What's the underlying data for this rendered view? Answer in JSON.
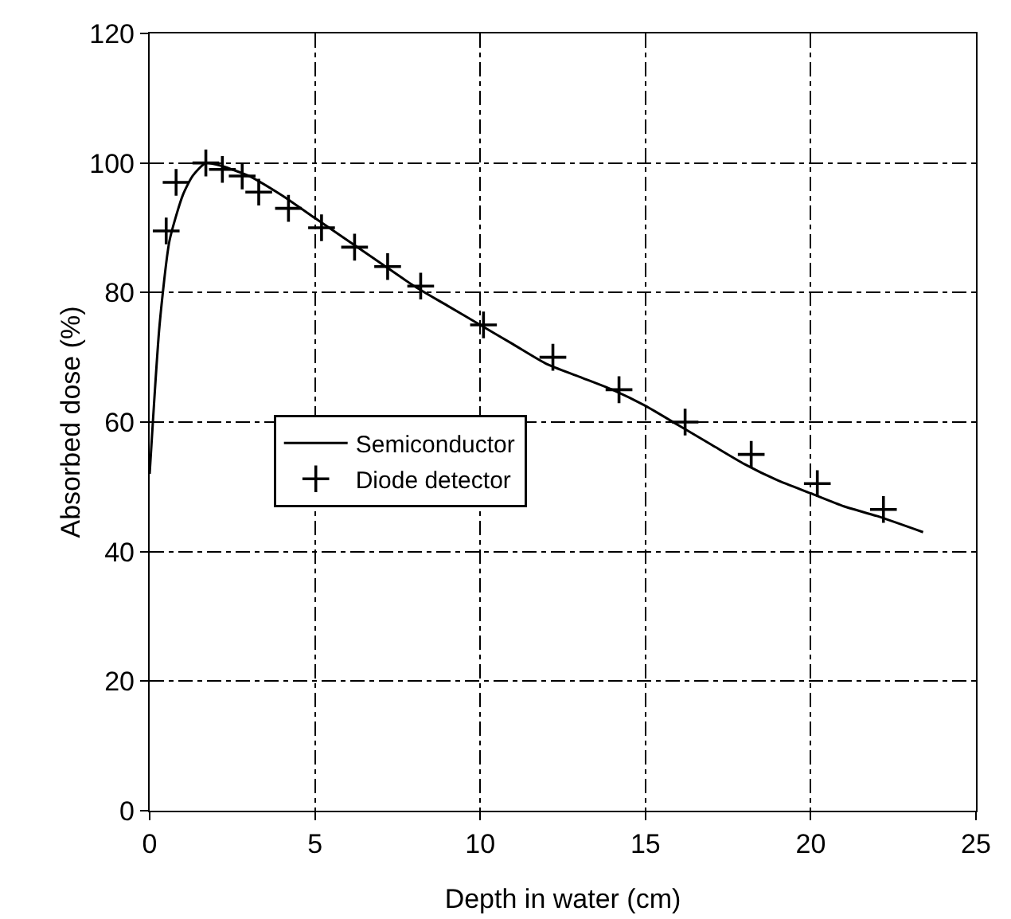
{
  "chart_data": {
    "type": "line",
    "xlabel": "Depth in water (cm)",
    "ylabel": "Absorbed dose (%)",
    "xlim": [
      0,
      25
    ],
    "xticks": [
      0,
      5,
      10,
      15,
      20,
      25
    ],
    "ylim": [
      0,
      120
    ],
    "yticks": [
      0,
      20,
      40,
      60,
      80,
      100,
      120
    ],
    "grid": true,
    "legend": "left",
    "series": [
      {
        "name": "Semiconductor",
        "type": "line",
        "color": "#000000",
        "marker": "none",
        "line_style": "solid",
        "x": [
          0,
          0.3,
          0.6,
          1,
          1.3,
          1.7,
          2.2,
          3,
          4,
          5,
          6,
          7,
          8,
          9,
          10,
          11,
          12,
          13,
          14,
          15,
          16,
          17,
          18,
          19,
          20,
          21,
          22,
          23.4
        ],
        "values": [
          52,
          75,
          88,
          95,
          98,
          100,
          99.5,
          98,
          95,
          91.5,
          88,
          84.5,
          81,
          78,
          75,
          72,
          69,
          67,
          65,
          62.5,
          59.5,
          56.5,
          53.5,
          51,
          49,
          47,
          45.5,
          43
        ]
      },
      {
        "name": "Diode detector",
        "type": "scatter",
        "color": "#000000",
        "marker": "cross",
        "x": [
          0.5,
          0.8,
          1.7,
          2.2,
          2.8,
          3.3,
          4.2,
          5.2,
          6.2,
          7.2,
          8.2,
          10.1,
          12.2,
          14.2,
          16.2,
          18.2,
          20.2,
          22.2
        ],
        "values": [
          89.5,
          97,
          100,
          99,
          98,
          95.5,
          93,
          90,
          87,
          84,
          81,
          75,
          70,
          65,
          60,
          55,
          50.5,
          46.5
        ]
      }
    ]
  }
}
